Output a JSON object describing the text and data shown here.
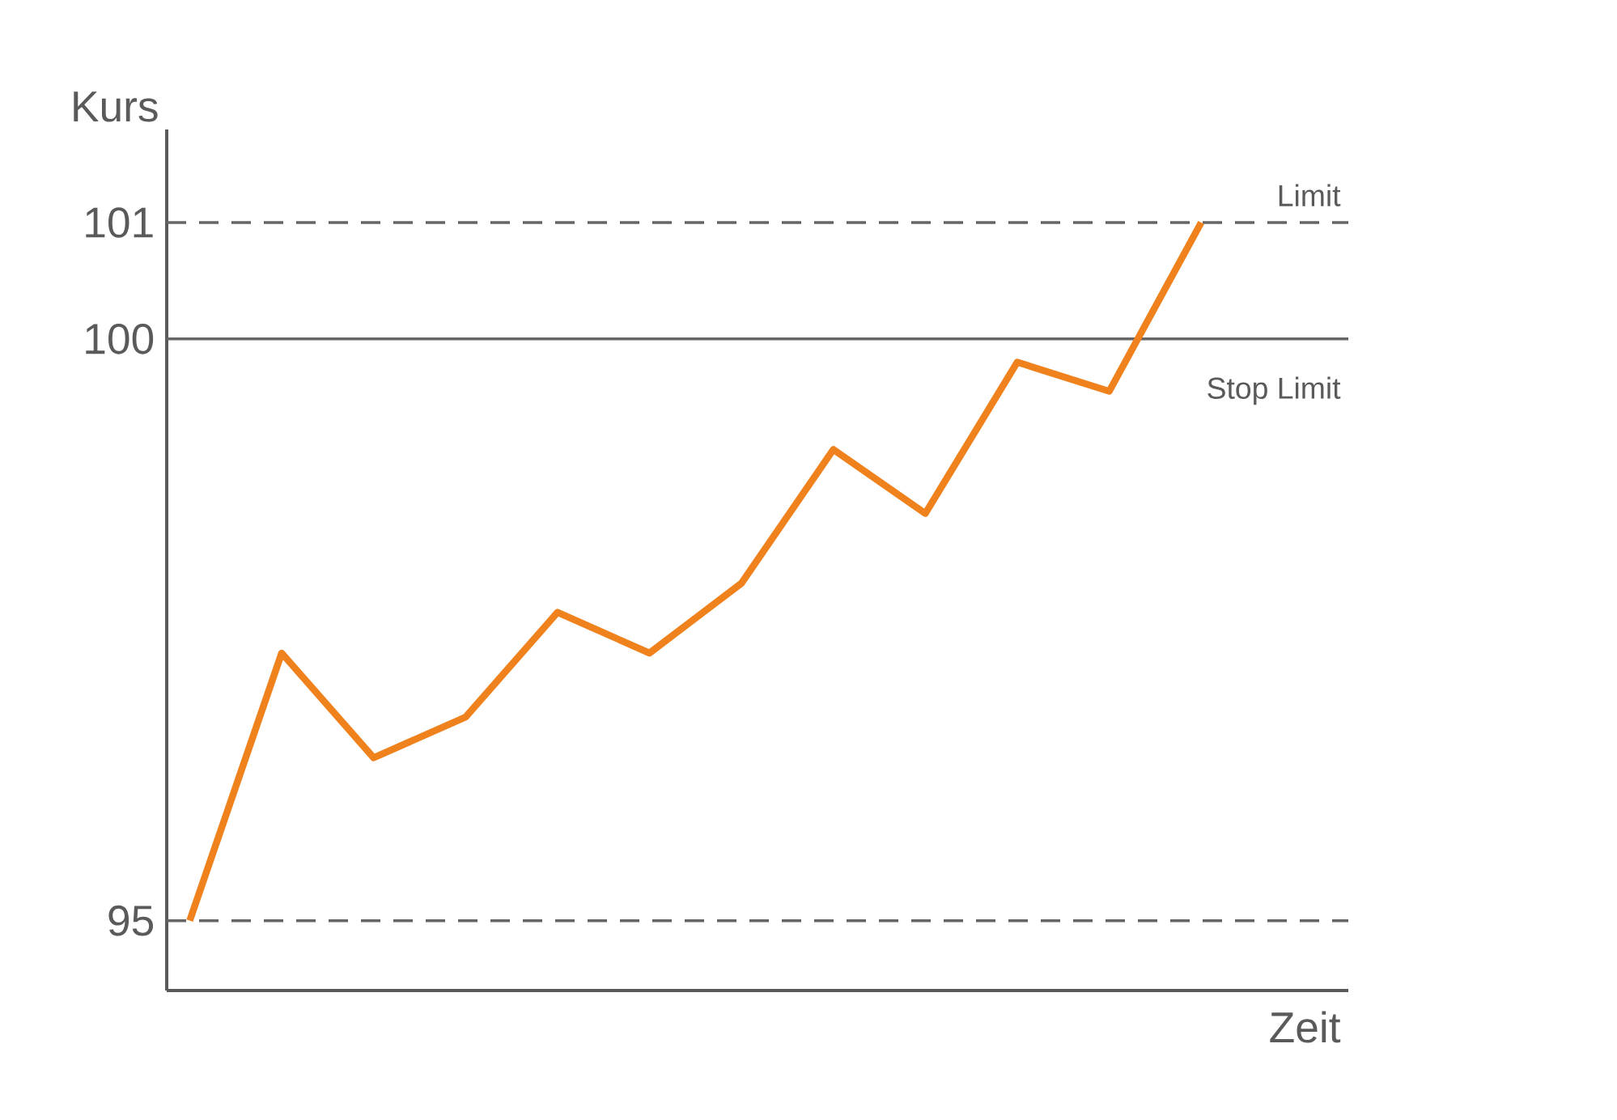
{
  "chart_data": {
    "type": "line",
    "xlabel": "Zeit",
    "ylabel": "Kurs",
    "categories": [
      null,
      null,
      null,
      null,
      null,
      null,
      null,
      null,
      null,
      null,
      null,
      null
    ],
    "series": [
      {
        "color": "#f0821e",
        "values": [
          95.0,
          97.3,
          96.4,
          96.75,
          97.65,
          97.3,
          97.9,
          99.05,
          98.5,
          99.8,
          99.55,
          101.0
        ]
      }
    ],
    "ylim": [
      94.4,
      101.8
    ],
    "yticks": [
      95,
      100,
      101
    ],
    "tick_labels": "y",
    "grid": false,
    "ref_lines": [
      {
        "axis": "y",
        "value": 101,
        "label": "Limit",
        "line_style": "dashed",
        "color": "#666666"
      },
      {
        "axis": "y",
        "value": 100,
        "label": "Stop Limit",
        "line_style": "solid",
        "color": "#666666"
      },
      {
        "axis": "y",
        "value": 95,
        "line_style": "dashed",
        "color": "#666666"
      }
    ]
  }
}
